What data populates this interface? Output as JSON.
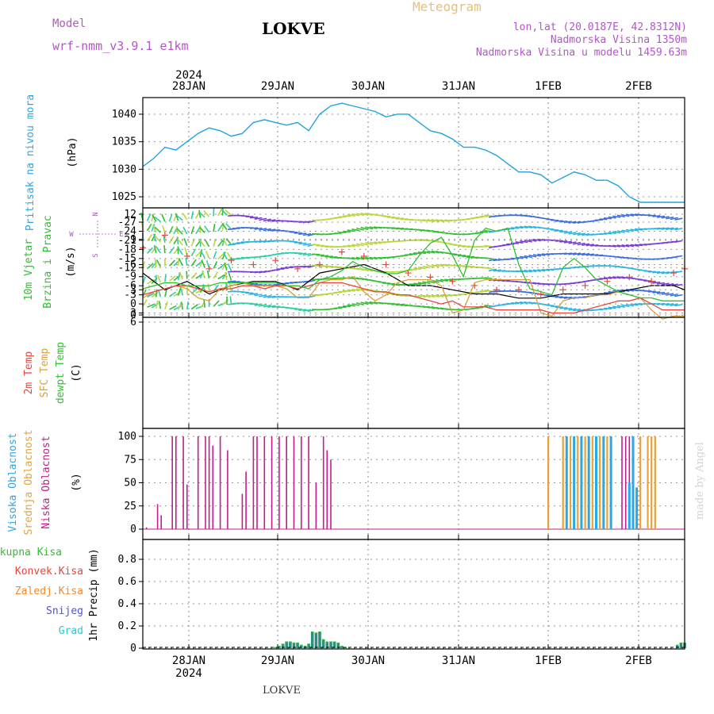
{
  "header": {
    "model_label": "Model",
    "model_name": "wrf-nmm_v3.9.1 e1km",
    "station": "LOKVE",
    "product": "Meteogram",
    "lonlat": "lon,lat (20.0187E, 42.8312N)",
    "elevation": "Nadmorska Visina 1350m",
    "model_elevation": "Nadmorska Visina u modelu 1459.63m",
    "footer_station": "LOKVE",
    "credit": "made by Angel"
  },
  "time_axis": {
    "year": "2024",
    "labels": [
      "28JAN",
      "29JAN",
      "30JAN",
      "31JAN",
      "1FEB",
      "2FEB"
    ]
  },
  "colors": {
    "pressure": "#1fa3e0",
    "t2m": "#e8453c",
    "sfc": "#d9a13a",
    "dewpt": "#2fbf2f",
    "low_cloud": "#c21d8c",
    "mid_cloud": "#e5a33a",
    "high_cloud": "#2aa7e6",
    "total_precip": "#2fbf2f",
    "conv_precip": "#e8453c",
    "frozen_precip": "#f08a2e",
    "snow": "#5050e0",
    "graupel": "#30c8c8"
  },
  "chart_data": [
    {
      "type": "line",
      "name": "pressure",
      "ylabel": [
        "Pritisak na nivou mora",
        "(hPa)"
      ],
      "ylim": [
        1023,
        1043
      ],
      "yticks": [
        1025,
        1030,
        1035,
        1040
      ],
      "grid": true,
      "x": [
        0,
        3,
        6,
        9,
        12,
        15,
        18,
        21,
        24,
        27,
        30,
        33,
        36,
        39,
        42,
        45,
        48,
        51,
        54,
        57,
        60,
        63,
        66,
        69,
        72,
        75,
        78,
        81,
        84,
        87,
        90,
        93,
        96,
        99,
        102,
        105,
        108,
        111,
        114,
        117,
        120,
        123,
        126,
        129,
        132,
        135,
        138,
        141,
        144,
        147
      ],
      "series": [
        {
          "values": [
            1030.5,
            1032.0,
            1034.0,
            1033.5,
            1035.0,
            1036.5,
            1037.5,
            1037.0,
            1036.0,
            1036.5,
            1038.5,
            1039.0,
            1038.5,
            1038.0,
            1038.5,
            1037.0,
            1040.0,
            1041.5,
            1042.0,
            1041.5,
            1041.0,
            1040.5,
            1039.5,
            1040.0,
            1040.0,
            1038.5,
            1037.0,
            1036.5,
            1035.5,
            1034.0,
            1034.0,
            1033.5,
            1032.5,
            1031.0,
            1029.5,
            1029.5,
            1029.0,
            1027.5,
            1028.5,
            1029.5,
            1029.0,
            1028.0,
            1028.0,
            1027.0,
            1025.0,
            1024.0,
            1024.0,
            1024.0,
            1024.0,
            1024.0
          ]
        }
      ]
    },
    {
      "type": "line",
      "name": "wind",
      "ylabel": [
        "10m Vjetar",
        "Brzina i Pravac",
        "(m/s)"
      ],
      "compass": [
        "N",
        "W",
        "E",
        "S"
      ],
      "ylim": [
        0,
        13
      ],
      "yticks": [
        0,
        3,
        6,
        9,
        12
      ],
      "grid": true,
      "x": [
        0,
        6,
        12,
        18,
        24,
        30,
        36,
        42,
        48,
        54,
        60,
        66,
        72,
        78,
        84,
        90,
        96,
        102,
        108,
        114,
        120,
        126,
        132,
        138,
        144,
        147
      ],
      "series": [
        {
          "values": [
            5.0,
            3.0,
            4.0,
            2.5,
            3.5,
            4.0,
            4.0,
            3.0,
            5.0,
            5.5,
            6.0,
            5.0,
            3.5,
            3.5,
            3.0,
            2.5,
            2.5,
            2.0,
            2.0,
            2.5,
            2.5,
            2.5,
            3.0,
            3.5,
            3.5,
            3.0
          ]
        },
        {
          "values": [
            8.0,
            9.5,
            7.0,
            5.5,
            6.5,
            6.0,
            6.5,
            5.5,
            6.0,
            7.5,
            7.0,
            6.0,
            5.0,
            4.5,
            4.0,
            3.5,
            3.0,
            3.0,
            2.5,
            3.0,
            3.5,
            4.0,
            4.5,
            4.0,
            5.0,
            5.5
          ]
        }
      ]
    },
    {
      "type": "line",
      "name": "temperature",
      "ylabel": [
        "2m Temp",
        "SFC Temp",
        "dewpt Temp",
        "(C)"
      ],
      "ylim": [
        -28.5,
        6
      ],
      "yticks": [
        6,
        3,
        0,
        -3,
        -6,
        -9,
        -12,
        -15,
        -18,
        -21,
        -24,
        -27
      ],
      "grid": true,
      "x": [
        0,
        3,
        6,
        9,
        12,
        15,
        18,
        21,
        24,
        27,
        30,
        33,
        36,
        39,
        42,
        45,
        48,
        51,
        54,
        57,
        60,
        63,
        66,
        69,
        72,
        75,
        78,
        81,
        84,
        87,
        90,
        93,
        96,
        99,
        102,
        105,
        108,
        111,
        114,
        117,
        120,
        123,
        126,
        129,
        132,
        135,
        138,
        141,
        144,
        147
      ],
      "series": [
        {
          "values": [
            -3,
            -4,
            -5,
            -6,
            -6,
            -5,
            -4,
            -5,
            -5,
            -6,
            -6,
            -5,
            -6,
            -6,
            -5,
            -6,
            -7,
            -7,
            -7,
            -6,
            -5,
            -4,
            -4,
            -3,
            -3,
            -2,
            -1,
            0,
            -1,
            1,
            1,
            1,
            2,
            2,
            2,
            2,
            2,
            3,
            3,
            3,
            2,
            1,
            0,
            -1,
            -1,
            -2,
            0,
            2,
            2,
            2
          ]
        },
        {
          "values": [
            -2,
            -4,
            -5,
            -6,
            -5,
            -2,
            -1,
            -5,
            -6,
            -7,
            -6,
            -6,
            -6,
            -5,
            -2,
            -2,
            -7,
            -8,
            -8,
            -9,
            -4,
            -1,
            -3,
            -7,
            -8,
            -8,
            -8,
            -6,
            3,
            2,
            -7,
            -8,
            -8,
            -8,
            -8,
            -8,
            3,
            4,
            -1,
            -2,
            -2,
            -3,
            -3,
            -4,
            -3,
            -2,
            2,
            5,
            4,
            4
          ]
        },
        {
          "values": [
            -5,
            -6,
            -7,
            -7,
            -6,
            -6,
            -6,
            -7,
            -7,
            -7,
            -7,
            -7,
            -7,
            -6,
            -6,
            -5,
            -8,
            -9,
            -11,
            -14,
            -12,
            -11,
            -10,
            -10,
            -11,
            -16,
            -20,
            -22,
            -16,
            -9,
            -21,
            -25,
            -24,
            -25,
            -13,
            -5,
            -4,
            -3,
            -12,
            -15,
            -12,
            -8,
            -6,
            -4,
            -3,
            -2,
            -2,
            -1,
            -1,
            -1
          ]
        }
      ]
    },
    {
      "type": "bar",
      "name": "cloud_cover",
      "ylabel": [
        "Visoka Oblacnost",
        "Srednja Oblacnost",
        "Niska Oblacnost",
        "(%)"
      ],
      "ylim": [
        0,
        100
      ],
      "yticks": [
        0,
        25,
        50,
        75,
        100
      ],
      "grid": true,
      "series": [
        {
          "name": "Niska Oblacnost",
          "x": [
            1,
            4,
            5,
            8,
            9,
            11,
            12,
            15,
            17,
            18,
            19,
            21,
            23,
            27,
            28,
            30,
            31,
            33,
            35,
            37,
            39,
            41,
            43,
            45,
            47,
            49,
            50,
            51,
            52,
            58,
            59,
            110,
            114,
            117,
            121,
            123,
            126,
            127,
            130,
            131,
            132,
            135,
            137,
            138
          ],
          "values": [
            2,
            27,
            15,
            100,
            100,
            100,
            48,
            100,
            100,
            100,
            90,
            100,
            85,
            38,
            62,
            100,
            100,
            100,
            100,
            100,
            100,
            100,
            100,
            100,
            50,
            100,
            85,
            75,
            0,
            0,
            0,
            100,
            100,
            100,
            100,
            100,
            100,
            100,
            100,
            100,
            100,
            100,
            100,
            100
          ]
        },
        {
          "name": "Srednja Oblacnost",
          "x": [
            110,
            114,
            116,
            118,
            120,
            122,
            124,
            126,
            135,
            137,
            138,
            139
          ],
          "values": [
            100,
            100,
            100,
            100,
            100,
            100,
            100,
            100,
            100,
            100,
            100,
            100
          ]
        },
        {
          "name": "Visoka Oblacnost",
          "x": [
            115,
            117,
            119,
            121,
            123,
            125,
            127,
            132,
            133,
            134
          ],
          "values": [
            100,
            100,
            100,
            100,
            100,
            100,
            100,
            50,
            100,
            45
          ]
        }
      ]
    },
    {
      "type": "bar",
      "name": "precip",
      "ylabel": [
        "1hr Precip (mm)"
      ],
      "legend": [
        "Ukupna Kisa",
        "Konvek.Kisa",
        "Zaledj.Kisa",
        "Snijeg",
        "Grad"
      ],
      "ylim": [
        0,
        1.0
      ],
      "yticks": [
        0,
        0.2,
        0.4,
        0.6,
        0.8
      ],
      "grid": true,
      "x": [
        36,
        37,
        38,
        39,
        40,
        41,
        42,
        43,
        44,
        45,
        46,
        47,
        48,
        49,
        50,
        51,
        52,
        53,
        54,
        55,
        145,
        146,
        147
      ],
      "values": [
        0.01,
        0.02,
        0.04,
        0.06,
        0.06,
        0.05,
        0.05,
        0.03,
        0.02,
        0.04,
        0.15,
        0.14,
        0.15,
        0.08,
        0.06,
        0.06,
        0.06,
        0.05,
        0.02,
        0.01,
        0.03,
        0.05,
        0.05
      ]
    }
  ]
}
